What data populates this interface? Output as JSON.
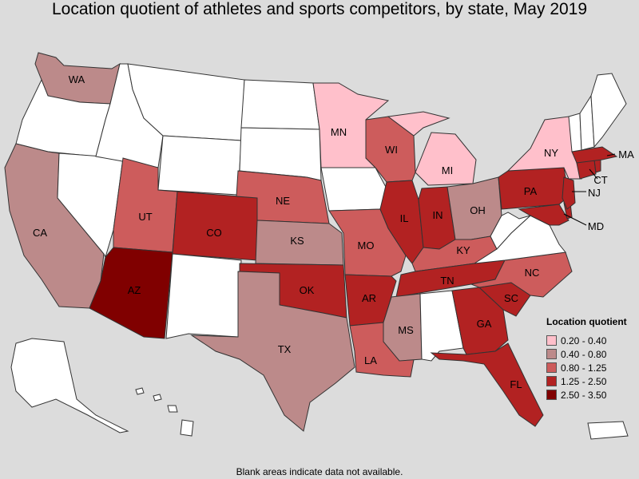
{
  "title": "Location quotient of athletes and sports competitors, by state, May 2019",
  "footnote": "Blank areas indicate data not available.",
  "legend": {
    "title": "Location quotient",
    "items": [
      {
        "label": "0.20 - 0.40",
        "color": "#ffc0cb"
      },
      {
        "label": "0.40 - 0.80",
        "color": "#bc8a8a"
      },
      {
        "label": "0.80 - 1.25",
        "color": "#cd5c5c"
      },
      {
        "label": "1.25 - 2.50",
        "color": "#b22222"
      },
      {
        "label": "2.50 - 3.50",
        "color": "#800000"
      }
    ]
  },
  "colors": {
    "blank": "#ffffff",
    "background": "#dcdcdc",
    "border": "#333333"
  },
  "states": {
    "WA": {
      "label": "WA",
      "class": "0.40 - 0.80"
    },
    "OR": {
      "label": "",
      "class": "blank"
    },
    "CA": {
      "label": "CA",
      "class": "0.40 - 0.80"
    },
    "NV": {
      "label": "",
      "class": "blank"
    },
    "ID": {
      "label": "",
      "class": "blank"
    },
    "MT": {
      "label": "",
      "class": "blank"
    },
    "WY": {
      "label": "",
      "class": "blank"
    },
    "UT": {
      "label": "UT",
      "class": "0.80 - 1.25"
    },
    "AZ": {
      "label": "AZ",
      "class": "2.50 - 3.50"
    },
    "CO": {
      "label": "CO",
      "class": "1.25 - 2.50"
    },
    "NM": {
      "label": "",
      "class": "blank"
    },
    "ND": {
      "label": "",
      "class": "blank"
    },
    "SD": {
      "label": "",
      "class": "blank"
    },
    "NE": {
      "label": "NE",
      "class": "0.80 - 1.25"
    },
    "KS": {
      "label": "KS",
      "class": "0.40 - 0.80"
    },
    "OK": {
      "label": "OK",
      "class": "1.25 - 2.50"
    },
    "TX": {
      "label": "TX",
      "class": "0.40 - 0.80"
    },
    "MN": {
      "label": "MN",
      "class": "0.20 - 0.40"
    },
    "IA": {
      "label": "",
      "class": "blank"
    },
    "MO": {
      "label": "MO",
      "class": "0.80 - 1.25"
    },
    "AR": {
      "label": "AR",
      "class": "1.25 - 2.50"
    },
    "LA": {
      "label": "LA",
      "class": "0.80 - 1.25"
    },
    "WI": {
      "label": "WI",
      "class": "0.80 - 1.25"
    },
    "IL": {
      "label": "IL",
      "class": "1.25 - 2.50"
    },
    "MI": {
      "label": "MI",
      "class": "0.20 - 0.40"
    },
    "IN": {
      "label": "IN",
      "class": "1.25 - 2.50"
    },
    "OH": {
      "label": "OH",
      "class": "0.40 - 0.80"
    },
    "KY": {
      "label": "KY",
      "class": "0.80 - 1.25"
    },
    "TN": {
      "label": "TN",
      "class": "1.25 - 2.50"
    },
    "MS": {
      "label": "MS",
      "class": "0.40 - 0.80"
    },
    "AL": {
      "label": "",
      "class": "blank"
    },
    "GA": {
      "label": "GA",
      "class": "1.25 - 2.50"
    },
    "FL": {
      "label": "FL",
      "class": "1.25 - 2.50"
    },
    "SC": {
      "label": "SC",
      "class": "1.25 - 2.50"
    },
    "NC": {
      "label": "NC",
      "class": "0.80 - 1.25"
    },
    "VA": {
      "label": "",
      "class": "blank"
    },
    "WV": {
      "label": "",
      "class": "blank"
    },
    "PA": {
      "label": "PA",
      "class": "1.25 - 2.50"
    },
    "NY": {
      "label": "NY",
      "class": "0.20 - 0.40"
    },
    "VT": {
      "label": "",
      "class": "blank"
    },
    "NH": {
      "label": "",
      "class": "blank"
    },
    "ME": {
      "label": "",
      "class": "blank"
    },
    "MA": {
      "label": "MA",
      "class": "1.25 - 2.50"
    },
    "CT": {
      "label": "CT",
      "class": "1.25 - 2.50"
    },
    "RI": {
      "label": "",
      "class": "1.25 - 2.50"
    },
    "NJ": {
      "label": "NJ",
      "class": "1.25 - 2.50"
    },
    "DE": {
      "label": "",
      "class": "1.25 - 2.50"
    },
    "MD": {
      "label": "MD",
      "class": "1.25 - 2.50"
    },
    "AK": {
      "label": "",
      "class": "blank"
    },
    "HI": {
      "label": "",
      "class": "blank"
    },
    "PR": {
      "label": "",
      "class": "blank"
    }
  }
}
